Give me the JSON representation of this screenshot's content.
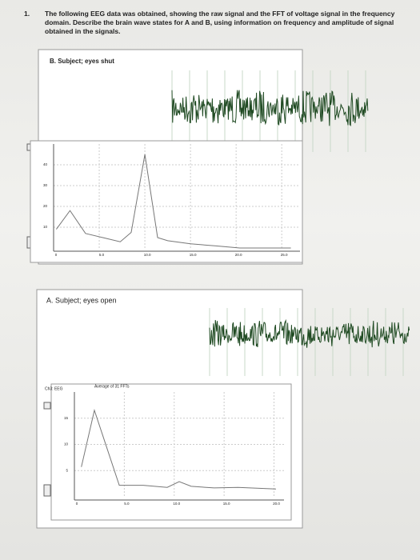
{
  "question": {
    "number": "1.",
    "text": "The following EEG data was obtained, showing the raw signal and the FFT of voltage signal in the frequency domain. Describe the brain wave states for A and B, using information on frequency and amplitude of signal obtained in the signals."
  },
  "panels": [
    {
      "label": "B.  Subject; eyes shut",
      "chart_data": {
        "type": "line",
        "x": [
          0.3,
          1.8,
          3.5,
          5.4,
          7.3,
          8.5,
          10,
          11.4,
          12.5,
          15,
          17.8,
          20.4,
          26
        ],
        "values": [
          9,
          18,
          7,
          5,
          3,
          7.5,
          45,
          5,
          3.5,
          2,
          1,
          0,
          0
        ],
        "color": "#777777",
        "xlim": [
          0,
          27
        ],
        "xticks": [
          0,
          {
            "value": 5,
            "label": "5.0"
          },
          {
            "value": 10,
            "label": "10.0"
          },
          {
            "value": 15,
            "label": "15.0"
          },
          {
            "value": 20,
            "label": "20.0"
          },
          {
            "value": 25,
            "label": "25.0"
          }
        ],
        "ylim": [
          0,
          50
        ],
        "yticks": [
          10,
          20,
          30,
          40
        ],
        "grid": true
      }
    },
    {
      "label": "A.  Subject; eyes open",
      "channel": "Ch3: EEG",
      "legend": "Average of 31 FFTs",
      "chart_data": {
        "type": "line",
        "x": [
          0.7,
          2,
          4.5,
          6.9,
          9.3,
          10.5,
          11.7,
          14,
          16.4,
          20.2
        ],
        "values": [
          5.7,
          16.5,
          2.2,
          2.2,
          1.8,
          2.9,
          2,
          1.7,
          1.8,
          1.5
        ],
        "color": "#777777",
        "xlim": [
          0,
          21
        ],
        "xticks": [
          0,
          {
            "value": 5,
            "label": "5.0"
          },
          {
            "value": 10,
            "label": "10.0"
          },
          {
            "value": 15,
            "label": "15.0"
          },
          {
            "value": 20,
            "label": "20.0"
          }
        ],
        "ylim": [
          0,
          20
        ],
        "yticks": [
          5,
          10,
          15
        ],
        "grid": true
      }
    }
  ]
}
